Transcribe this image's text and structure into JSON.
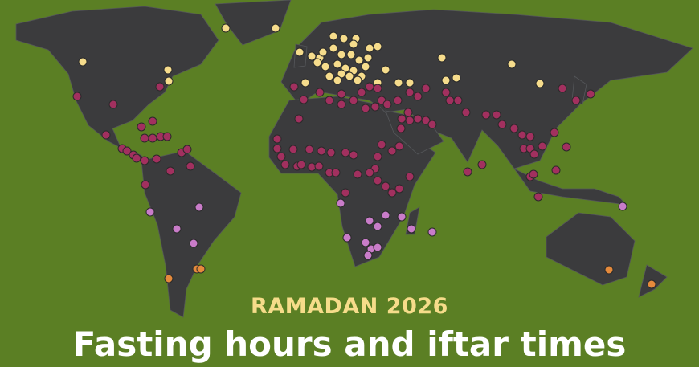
{
  "header": {
    "subtitle": "RAMADAN 2026",
    "title": "Fasting hours and iftar times"
  },
  "colors": {
    "background": "#5b7f24",
    "land": "#3b3b3d",
    "categories": {
      "yellow": "#f6dc8c",
      "crimson": "#a2305f",
      "violet": "#c97cc9",
      "orange": "#e58a3c"
    }
  }
}
